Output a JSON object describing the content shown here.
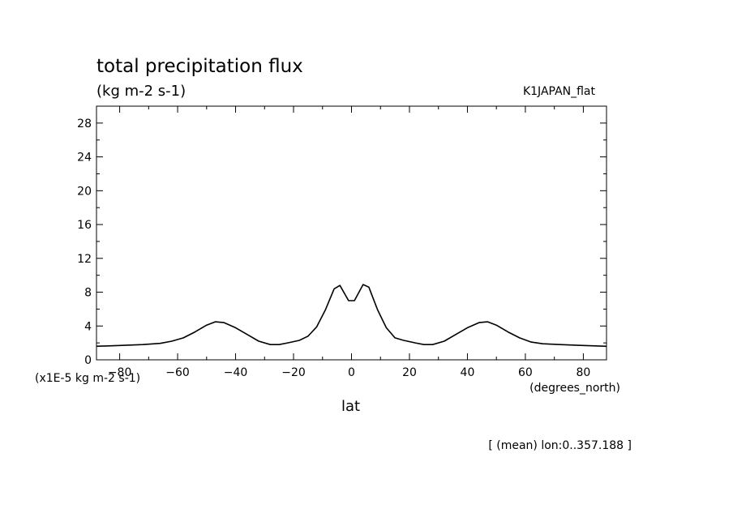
{
  "chart_data": {
    "type": "line",
    "title": "total precipitation flux",
    "subtitle": "(kg m-2 s-1)",
    "run_label": "K1JAPAN_flat",
    "xlabel": "lat",
    "x_units": "(degrees_north)",
    "y_scale_label": "(x1E-5 kg m-2 s-1)",
    "footer": "[ (mean) lon:0..357.188 ]",
    "xlim": [
      -88,
      88
    ],
    "ylim": [
      0,
      30
    ],
    "x_ticks": [
      -80,
      -60,
      -40,
      -20,
      0,
      20,
      40,
      60,
      80
    ],
    "y_ticks": [
      0,
      4,
      8,
      12,
      16,
      20,
      24,
      28
    ],
    "x": [
      -88,
      -80,
      -72,
      -66,
      -62,
      -58,
      -54,
      -50,
      -47,
      -44,
      -40,
      -36,
      -32,
      -28,
      -25,
      -22,
      -18,
      -15,
      -12,
      -9,
      -6,
      -4,
      -1,
      1,
      4,
      6,
      9,
      12,
      15,
      18,
      22,
      25,
      28,
      32,
      36,
      40,
      44,
      47,
      50,
      54,
      58,
      62,
      66,
      72,
      80,
      88
    ],
    "y": [
      1.6,
      1.7,
      1.8,
      1.95,
      2.2,
      2.6,
      3.3,
      4.1,
      4.5,
      4.4,
      3.8,
      3.0,
      2.2,
      1.8,
      1.8,
      2.0,
      2.3,
      2.8,
      3.9,
      5.9,
      8.4,
      8.8,
      7.0,
      7.0,
      8.9,
      8.6,
      5.9,
      3.8,
      2.6,
      2.3,
      2.0,
      1.8,
      1.8,
      2.2,
      3.0,
      3.8,
      4.4,
      4.5,
      4.1,
      3.3,
      2.6,
      2.1,
      1.9,
      1.8,
      1.7,
      1.6
    ],
    "grid": false,
    "line_color": "#000000"
  }
}
